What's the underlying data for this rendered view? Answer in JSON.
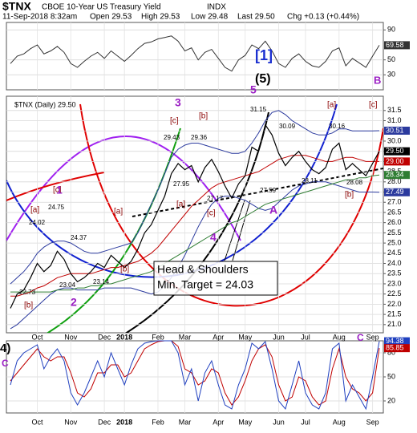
{
  "header": {
    "symbol": "$TNX",
    "name": "CBOE 10-Year US Treasury Yield",
    "exchange": "INDX",
    "date": "11-Sep-2018 8:32am",
    "open": "Open 29.53",
    "high": "High 29.53",
    "low": "Low 29.48",
    "last": "Last 29.50",
    "change": "Chg +0.13 (+0.44%)"
  },
  "chart_data": [
    {
      "type": "line",
      "ylim": [
        10,
        100
      ],
      "yticks": [
        30,
        50,
        90
      ],
      "grid": true,
      "series": [
        {
          "color": "#333333",
          "values": [
            45,
            55,
            58,
            65,
            70,
            58,
            62,
            68,
            60,
            45,
            40,
            48,
            55,
            60,
            52,
            62,
            55,
            48,
            56,
            65,
            72,
            74,
            78,
            80,
            82,
            75,
            62,
            66,
            50,
            60,
            64,
            52,
            40,
            35,
            50,
            56,
            70,
            65,
            75,
            62,
            45,
            40,
            52,
            58,
            48,
            42,
            40,
            48,
            62,
            66,
            42,
            52,
            46,
            40,
            55,
            69.58
          ]
        }
      ],
      "markers": [
        {
          "value": 69.58,
          "label": "69.58",
          "color": "#333333"
        }
      ],
      "annotations": [
        "[1]",
        "(5)",
        "B"
      ]
    },
    {
      "type": "line",
      "ylim": [
        20.6,
        32.2
      ],
      "grid": true,
      "yticks": [
        {
          "value": 21,
          "label": "21.0"
        },
        21.5,
        {
          "value": 22,
          "label": "22.0"
        },
        22.5,
        {
          "value": 23,
          "label": "23.0"
        },
        23.5,
        {
          "value": 24,
          "label": "24.0"
        },
        24.5,
        {
          "value": 25,
          "label": "25.0"
        },
        25.5,
        {
          "value": 26,
          "label": "26.0"
        },
        26.5,
        {
          "value": 27,
          "label": "27.0"
        },
        27.5,
        {
          "value": 28,
          "label": "28.0"
        },
        28.5,
        {
          "value": 29,
          "label": "29.0"
        },
        29.5,
        {
          "value": 30,
          "label": "30.0"
        },
        30.5,
        {
          "value": 31,
          "label": "31.0"
        },
        31.5
      ],
      "categories": [
        null,
        null,
        null,
        null,
        "Oct",
        null,
        null,
        null,
        null,
        "Nov",
        null,
        null,
        null,
        null,
        "Dec",
        null,
        null,
        "2018",
        null,
        null,
        null,
        null,
        "Feb",
        null,
        null,
        null,
        "Mar",
        null,
        null,
        null,
        null,
        "Apr",
        null,
        null,
        null,
        "May",
        null,
        null,
        null,
        null,
        "Jun",
        null,
        null,
        null,
        "Jul",
        null,
        null,
        null,
        null,
        "Aug",
        null,
        null,
        null,
        null,
        "Sep",
        null
      ],
      "series": [
        {
          "color": "#2b3a9e",
          "values": [
            23.0,
            23.3,
            23.6,
            24.0,
            24.5,
            24.8,
            25.0,
            25.1,
            25.1,
            25.0,
            24.8,
            24.6,
            24.5,
            24.5,
            24.6,
            24.7,
            24.8,
            24.9,
            25.0,
            25.5,
            26.2,
            26.9,
            27.6,
            28.4,
            29.2,
            29.6,
            29.8,
            29.9,
            29.9,
            29.8,
            29.7,
            29.6,
            29.5,
            29.4,
            29.4,
            29.5,
            29.9,
            30.4,
            31.0,
            31.4,
            31.5,
            31.3,
            31.0,
            30.8,
            30.6,
            30.4,
            30.3,
            30.3,
            30.4,
            30.6,
            30.6,
            30.5,
            30.5,
            30.5,
            30.5,
            30.51
          ]
        },
        {
          "color": "#2b3a9e",
          "values": [
            20.8,
            21.0,
            21.3,
            21.6,
            21.9,
            22.2,
            22.5,
            22.7,
            22.8,
            22.8,
            22.7,
            22.7,
            22.7,
            22.7,
            22.8,
            22.8,
            22.8,
            22.8,
            22.8,
            22.7,
            22.6,
            22.5,
            22.6,
            22.9,
            23.3,
            23.8,
            24.4,
            25.1,
            25.8,
            26.4,
            26.9,
            27.2,
            27.3,
            27.3,
            27.2,
            27.1,
            26.9,
            26.7,
            26.6,
            26.7,
            27.0,
            27.3,
            27.6,
            27.8,
            27.9,
            28.0,
            28.0,
            28.0,
            27.9,
            27.8,
            27.7,
            27.6,
            27.5,
            27.5,
            27.5,
            27.49
          ]
        },
        {
          "color": "#2e7d32",
          "values": [
            22.6,
            22.6,
            22.6,
            22.6,
            22.6,
            22.6,
            22.6,
            22.7,
            22.7,
            22.7,
            22.8,
            22.8,
            22.9,
            22.9,
            23.0,
            23.0,
            23.1,
            23.2,
            23.3,
            23.4,
            23.5,
            23.6,
            23.8,
            24.0,
            24.2,
            24.4,
            24.6,
            24.8,
            25.0,
            25.2,
            25.4,
            25.6,
            25.8,
            26.0,
            26.1,
            26.3,
            26.5,
            26.7,
            26.9,
            27.0,
            27.1,
            27.2,
            27.3,
            27.4,
            27.5,
            27.6,
            27.7,
            27.8,
            27.9,
            28.0,
            28.1,
            28.1,
            28.2,
            28.2,
            28.3,
            28.34
          ]
        },
        {
          "color": "#c00000",
          "values": [
            22.4,
            22.4,
            22.5,
            22.6,
            22.8,
            22.9,
            23.1,
            23.3,
            23.4,
            23.5,
            23.5,
            23.5,
            23.5,
            23.6,
            23.7,
            23.8,
            23.8,
            23.9,
            24.0,
            24.1,
            24.3,
            24.5,
            24.8,
            25.2,
            25.6,
            26.0,
            26.4,
            26.8,
            27.1,
            27.4,
            27.7,
            27.9,
            28.0,
            28.1,
            28.2,
            28.3,
            28.4,
            28.5,
            28.7,
            28.9,
            29.1,
            29.2,
            29.3,
            29.3,
            29.3,
            29.2,
            29.1,
            29.0,
            29.0,
            29.1,
            29.2,
            29.2,
            29.1,
            29.0,
            29.0,
            29.0
          ]
        },
        {
          "color": "#000000",
          "values": [
            21.8,
            22.5,
            22.7,
            23.3,
            24.0,
            23.6,
            23.9,
            24.6,
            24.2,
            23.5,
            23.1,
            23.3,
            23.6,
            24.0,
            23.8,
            24.4,
            24.1,
            23.8,
            24.1,
            24.7,
            25.5,
            25.9,
            26.6,
            27.3,
            28.4,
            28.9,
            28.6,
            28.8,
            28.0,
            28.7,
            29.1,
            28.5,
            27.8,
            27.2,
            27.9,
            28.3,
            29.7,
            29.5,
            30.8,
            30.3,
            29.4,
            28.8,
            29.2,
            29.5,
            29.0,
            28.6,
            28.4,
            28.7,
            29.6,
            29.9,
            28.6,
            28.9,
            28.6,
            28.3,
            28.9,
            29.5
          ]
        }
      ],
      "markers": [
        {
          "value": 30.51,
          "label": "30.51",
          "color": "#2b3a9e"
        },
        {
          "value": 29.5,
          "label": "29.50",
          "color": "#000000"
        },
        {
          "value": 29.0,
          "label": "29.00",
          "color": "#c00000"
        },
        {
          "value": 28.34,
          "label": "28.34",
          "color": "#2e7d32"
        },
        {
          "value": 27.49,
          "label": "27.49",
          "color": "#2b3a9e"
        }
      ],
      "annotations": [
        "$TNX (Daily) 29.50",
        "[a]",
        "24.02",
        "24.75",
        "[c]",
        "1",
        "22.73",
        "[b]",
        "23.04",
        "2",
        "24.37",
        "23.14",
        "[a]",
        "[b]",
        "3",
        "[c]",
        "29.43",
        "29.36",
        "[b]",
        "27.95",
        "27.17",
        "[a]",
        "[c]",
        "4",
        "5",
        "31.15",
        "30.09",
        "27.59",
        "A",
        "[a]",
        "30.16",
        "28.11",
        "28.08",
        "[c]",
        "[b]",
        "Head & Shoulders",
        "Min. Target = 24.03"
      ]
    },
    {
      "type": "line",
      "ylim": [
        5,
        95
      ],
      "yticks": [
        20,
        50,
        80
      ],
      "grid": true,
      "series": [
        {
          "color": "#c00000",
          "values": [
            45,
            55,
            65,
            75,
            85,
            75,
            70,
            75,
            75,
            55,
            30,
            25,
            35,
            55,
            55,
            65,
            65,
            50,
            55,
            70,
            85,
            90,
            94,
            95,
            95,
            88,
            60,
            55,
            40,
            45,
            60,
            55,
            30,
            15,
            25,
            45,
            70,
            85,
            90,
            75,
            40,
            20,
            25,
            50,
            45,
            25,
            15,
            20,
            60,
            85,
            50,
            35,
            30,
            20,
            30,
            85.85
          ]
        },
        {
          "color": "#1f3fbf",
          "values": [
            40,
            70,
            80,
            85,
            90,
            60,
            75,
            85,
            70,
            30,
            15,
            30,
            50,
            70,
            50,
            80,
            60,
            40,
            65,
            85,
            92,
            94,
            95,
            95,
            95,
            80,
            40,
            60,
            20,
            55,
            70,
            40,
            15,
            10,
            40,
            60,
            92,
            85,
            94,
            60,
            20,
            10,
            40,
            70,
            30,
            15,
            10,
            30,
            85,
            92,
            20,
            40,
            25,
            10,
            50,
            94.38
          ]
        }
      ],
      "markers": [
        {
          "value": 94.38,
          "label": "94.38",
          "color": "#1f3fbf"
        },
        {
          "value": 85.85,
          "label": "85.85",
          "color": "#c00000"
        }
      ],
      "annotations": [
        "4)",
        "C",
        "C"
      ]
    }
  ]
}
